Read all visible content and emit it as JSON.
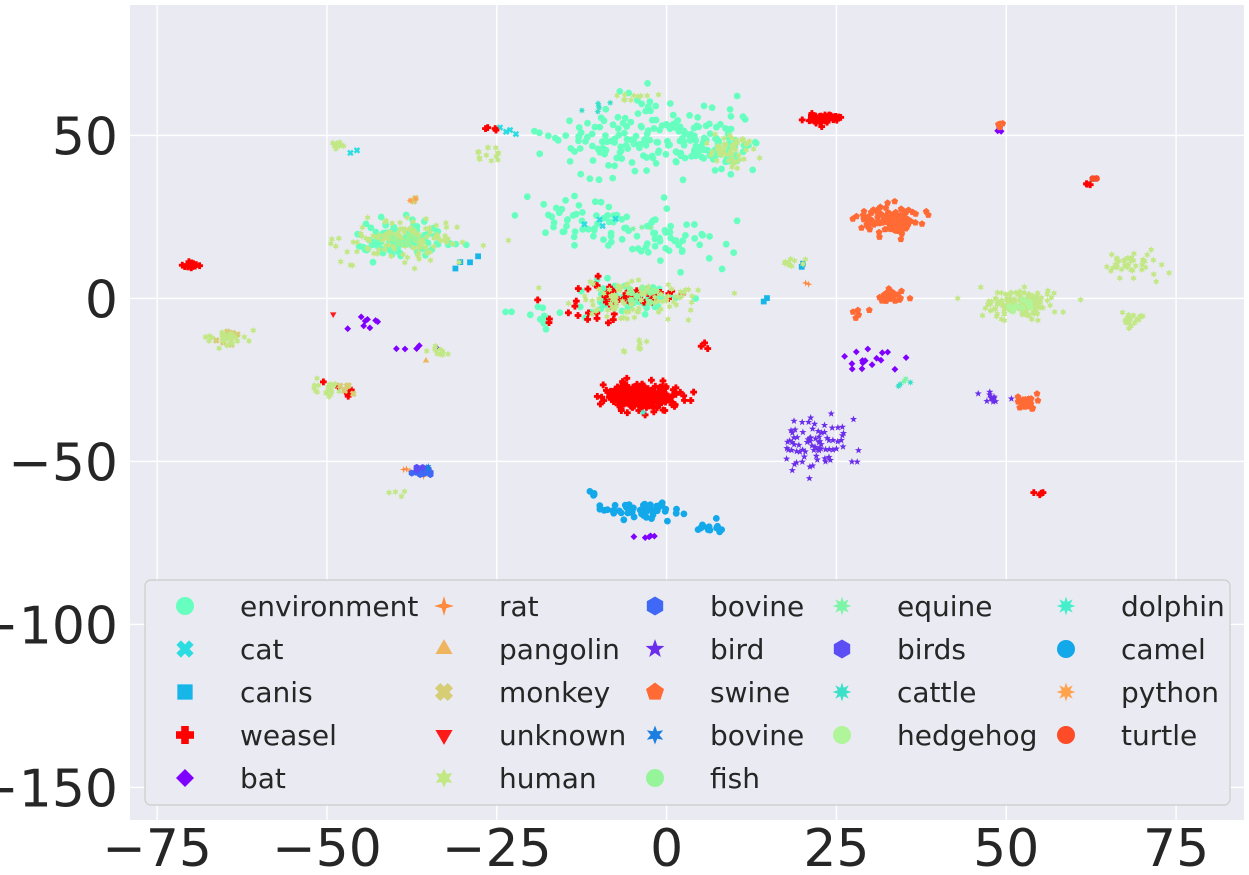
{
  "chart_data": {
    "type": "scatter",
    "title": "",
    "xlabel": "",
    "ylabel": "",
    "xlim": [
      -79,
      85
    ],
    "ylim": [
      -160,
      90
    ],
    "x_ticks": [
      -75,
      -50,
      -25,
      0,
      25,
      50,
      75
    ],
    "y_ticks": [
      -150,
      -100,
      -50,
      0,
      50
    ],
    "x_tick_labels": [
      "−75",
      "−50",
      "−25",
      "0",
      "25",
      "50",
      "75"
    ],
    "y_tick_labels": [
      "−150",
      "−100",
      "−50",
      "0",
      "50"
    ],
    "grid": true,
    "legend_position": "lower-center",
    "series": [
      {
        "name": "environment",
        "color": "#66ffbf",
        "marker": "circle",
        "clusters": [
          [
            -4,
            50,
            12,
            10,
            170
          ],
          [
            -38,
            18,
            6,
            5,
            90
          ],
          [
            -6,
            0,
            6,
            5,
            60
          ],
          [
            -2,
            18,
            10,
            6,
            60
          ],
          [
            8,
            45,
            6,
            5,
            40
          ],
          [
            -12,
            25,
            8,
            6,
            40
          ],
          [
            -20,
            -5,
            6,
            4,
            12
          ]
        ]
      },
      {
        "name": "cat",
        "color": "#2bdde0",
        "marker": "x",
        "clusters": [
          [
            -23,
            52,
            2,
            1,
            4
          ],
          [
            63,
            37,
            1,
            1,
            3
          ],
          [
            -10,
            24,
            3,
            2,
            4
          ],
          [
            -46,
            45,
            1,
            1,
            2
          ]
        ]
      },
      {
        "name": "canis",
        "color": "#16b7e8",
        "marker": "square",
        "clusters": [
          [
            -30,
            12,
            3,
            3,
            4
          ],
          [
            20,
            10,
            1,
            1,
            2
          ],
          [
            14,
            0,
            1,
            1,
            2
          ]
        ]
      },
      {
        "name": "weasel",
        "color": "#ff0000",
        "marker": "plus",
        "clusters": [
          [
            -4,
            -30,
            5,
            3.5,
            320
          ],
          [
            23,
            55,
            2,
            1.3,
            60
          ],
          [
            -70,
            10,
            1,
            1,
            14
          ],
          [
            -5,
            1,
            6,
            3,
            50
          ],
          [
            -12,
            -5,
            6,
            4,
            14
          ],
          [
            55,
            -60,
            1,
            0.5,
            4
          ],
          [
            62,
            35,
            0.8,
            0.5,
            3
          ],
          [
            -26,
            52,
            1,
            1,
            4
          ],
          [
            -48,
            -28,
            2,
            2,
            6
          ],
          [
            5,
            -15,
            1,
            1,
            3
          ]
        ]
      },
      {
        "name": "bat",
        "color": "#8000ff",
        "marker": "diamond",
        "clusters": [
          [
            30,
            -18,
            4,
            4,
            16
          ],
          [
            -45,
            -8,
            3,
            3,
            8
          ],
          [
            -3,
            -73,
            2,
            1,
            5
          ],
          [
            49,
            52,
            1,
            1,
            3
          ],
          [
            -37,
            -16,
            3,
            3,
            5
          ]
        ]
      },
      {
        "name": "rat",
        "color": "#ff8a3d",
        "marker": "plus4",
        "clusters": [
          [
            -38,
            -53,
            2,
            2,
            4
          ],
          [
            20,
            5,
            1,
            1,
            2
          ]
        ]
      },
      {
        "name": "pangolin",
        "color": "#efb55e",
        "marker": "triangle-up",
        "clusters": [
          [
            -36,
            -19,
            1,
            1,
            1
          ]
        ]
      },
      {
        "name": "monkey",
        "color": "#d6cd75",
        "marker": "x-thick",
        "clusters": [
          [
            -37,
            30,
            1,
            1,
            3
          ],
          [
            -48,
            -27,
            2,
            2,
            5
          ],
          [
            -65,
            -12,
            3,
            2,
            8
          ]
        ]
      },
      {
        "name": "unknown",
        "color": "#ff1a1a",
        "marker": "triangle-down",
        "clusters": [
          [
            -49,
            -5,
            0.5,
            0.5,
            1
          ]
        ]
      },
      {
        "name": "human",
        "color": "#c2e886",
        "marker": "star6",
        "clusters": [
          [
            52,
            -2,
            5,
            4,
            130
          ],
          [
            -38,
            18,
            8,
            6,
            120
          ],
          [
            -5,
            0,
            8,
            5,
            100
          ],
          [
            10,
            45,
            4,
            5,
            50
          ],
          [
            68,
            10,
            4,
            4,
            40
          ],
          [
            68,
            -7,
            2,
            2,
            20
          ],
          [
            -65,
            -12,
            3,
            2,
            30
          ],
          [
            -5,
            62,
            3,
            1,
            10
          ],
          [
            -48,
            47,
            2,
            1,
            10
          ],
          [
            -50,
            -28,
            2,
            2,
            20
          ],
          [
            -33,
            -16,
            2,
            2,
            10
          ],
          [
            18,
            11,
            2,
            1,
            10
          ],
          [
            -26,
            45,
            4,
            3,
            14
          ],
          [
            -40,
            -60,
            3,
            2,
            4
          ],
          [
            -5,
            -15,
            2,
            4,
            8
          ]
        ]
      },
      {
        "name": "bovine",
        "color": "#3e68f5",
        "marker": "hexagon",
        "clusters": [
          [
            -36,
            -53,
            1.5,
            1.5,
            18
          ]
        ]
      },
      {
        "name": "bird",
        "color": "#6b2eeb",
        "marker": "star5",
        "clusters": [
          [
            22,
            -45,
            4,
            7,
            80
          ],
          [
            48,
            -30,
            2,
            2,
            12
          ]
        ]
      },
      {
        "name": "swine",
        "color": "#ff6a35",
        "marker": "pentagon",
        "clusters": [
          [
            33,
            24,
            4,
            4,
            100
          ],
          [
            33,
            1,
            2,
            2,
            30
          ],
          [
            53,
            -32,
            2,
            2,
            20
          ],
          [
            49,
            53,
            1,
            1,
            6
          ],
          [
            28,
            -5,
            3,
            2,
            5
          ]
        ]
      },
      {
        "name": "bovine",
        "color": "#1c7fe0",
        "marker": "star6b",
        "clusters": [
          [
            -35,
            -52,
            1,
            1,
            3
          ]
        ]
      },
      {
        "name": "fish",
        "color": "#96f59b",
        "marker": "circle",
        "clusters": [
          [
            -38,
            18,
            3,
            3,
            10
          ],
          [
            -5,
            2,
            4,
            3,
            8
          ]
        ]
      },
      {
        "name": "equine",
        "color": "#7cf5a7",
        "marker": "star8",
        "clusters": [
          [
            -4,
            22,
            3,
            2,
            3
          ],
          [
            35,
            -25,
            1,
            1,
            2
          ]
        ]
      },
      {
        "name": "birds",
        "color": "#5b4ef5",
        "marker": "hexagon",
        "clusters": [
          [
            -36,
            -52,
            1,
            1,
            3
          ]
        ]
      },
      {
        "name": "cattle",
        "color": "#3ae0c7",
        "marker": "star8",
        "clusters": [
          [
            35,
            -26,
            2,
            1,
            3
          ],
          [
            -10,
            58,
            3,
            2,
            6
          ]
        ]
      },
      {
        "name": "hedgehog",
        "color": "#b1f59b",
        "marker": "circle",
        "clusters": [
          [
            52,
            -2,
            2,
            2,
            8
          ]
        ]
      },
      {
        "name": "dolphin",
        "color": "#44f0cc",
        "marker": "star8",
        "clusters": [
          [
            -3,
            -35,
            1,
            1,
            1
          ]
        ]
      },
      {
        "name": "camel",
        "color": "#12a8ea",
        "marker": "circle",
        "clusters": [
          [
            -4,
            -65,
            4,
            3,
            50
          ],
          [
            6,
            -70,
            3,
            2,
            14
          ],
          [
            -12,
            -60,
            2,
            1,
            4
          ]
        ]
      },
      {
        "name": "python",
        "color": "#ffa24e",
        "marker": "star8",
        "clusters": [
          [
            -37,
            30,
            1,
            1,
            2
          ]
        ]
      },
      {
        "name": "turtle",
        "color": "#ff4c28",
        "marker": "circle",
        "clusters": [
          [
            63,
            37,
            0.5,
            0.5,
            2
          ]
        ]
      }
    ]
  }
}
